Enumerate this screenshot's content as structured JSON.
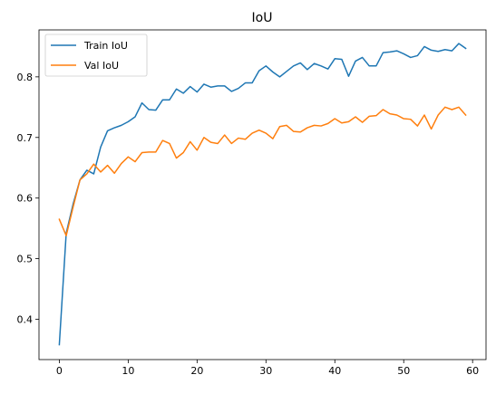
{
  "chart_data": {
    "type": "line",
    "title": "IoU",
    "xlabel": "",
    "ylabel": "",
    "xlim": [
      -2.95,
      61.95
    ],
    "ylim": [
      0.3335,
      0.8775
    ],
    "xticks": [
      0,
      10,
      20,
      30,
      40,
      50,
      60
    ],
    "yticks": [
      0.4,
      0.5,
      0.6,
      0.7,
      0.8
    ],
    "ytick_labels": [
      "0.4",
      "0.5",
      "0.6",
      "0.7",
      "0.8"
    ],
    "grid": false,
    "legend_position": "top-left",
    "x": [
      0,
      1,
      2,
      3,
      4,
      5,
      6,
      7,
      8,
      9,
      10,
      11,
      12,
      13,
      14,
      15,
      16,
      17,
      18,
      19,
      20,
      21,
      22,
      23,
      24,
      25,
      26,
      27,
      28,
      29,
      30,
      31,
      32,
      33,
      34,
      35,
      36,
      37,
      38,
      39,
      40,
      41,
      42,
      43,
      44,
      45,
      46,
      47,
      48,
      49,
      50,
      51,
      52,
      53,
      54,
      55,
      56,
      57,
      58,
      59
    ],
    "series": [
      {
        "name": "Train IoU",
        "color": "#1f77b4",
        "values": [
          0.358,
          0.542,
          0.59,
          0.63,
          0.646,
          0.64,
          0.684,
          0.711,
          0.716,
          0.72,
          0.726,
          0.734,
          0.757,
          0.746,
          0.745,
          0.762,
          0.762,
          0.78,
          0.773,
          0.784,
          0.775,
          0.788,
          0.783,
          0.785,
          0.785,
          0.776,
          0.781,
          0.79,
          0.79,
          0.81,
          0.818,
          0.808,
          0.8,
          0.809,
          0.818,
          0.823,
          0.812,
          0.822,
          0.818,
          0.813,
          0.83,
          0.829,
          0.801,
          0.826,
          0.832,
          0.818,
          0.818,
          0.84,
          0.841,
          0.843,
          0.838,
          0.832,
          0.835,
          0.85,
          0.844,
          0.842,
          0.845,
          0.843,
          0.855,
          0.847
        ]
      },
      {
        "name": "Val IoU",
        "color": "#ff7f0e",
        "values": [
          0.565,
          0.538,
          0.585,
          0.63,
          0.64,
          0.656,
          0.643,
          0.654,
          0.641,
          0.657,
          0.668,
          0.66,
          0.675,
          0.676,
          0.676,
          0.695,
          0.69,
          0.666,
          0.675,
          0.693,
          0.679,
          0.7,
          0.692,
          0.69,
          0.704,
          0.69,
          0.699,
          0.697,
          0.707,
          0.712,
          0.707,
          0.698,
          0.718,
          0.72,
          0.71,
          0.709,
          0.716,
          0.72,
          0.719,
          0.723,
          0.731,
          0.724,
          0.726,
          0.734,
          0.725,
          0.735,
          0.736,
          0.746,
          0.739,
          0.737,
          0.731,
          0.73,
          0.719,
          0.737,
          0.714,
          0.737,
          0.75,
          0.746,
          0.75,
          0.737
        ]
      }
    ]
  }
}
